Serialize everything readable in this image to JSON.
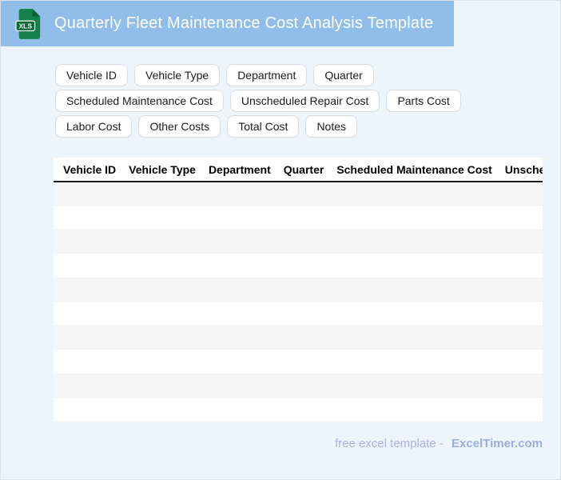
{
  "header": {
    "title": "Quarterly Fleet Maintenance Cost Analysis Template",
    "file_icon_label": "XLS",
    "bar_color": "#90bee9",
    "icon_green": "#14804a",
    "icon_fold_green": "#0a5f33",
    "icon_band_green": "#0c6b36"
  },
  "chips": [
    "Vehicle ID",
    "Vehicle Type",
    "Department",
    "Quarter",
    "Scheduled Maintenance Cost",
    "Unscheduled Repair Cost",
    "Parts Cost",
    "Labor Cost",
    "Other Costs",
    "Total Cost",
    "Notes"
  ],
  "table": {
    "columns": [
      "Vehicle ID",
      "Vehicle Type",
      "Department",
      "Quarter",
      "Scheduled Maintenance Cost",
      "Unscheduled Repair Cost"
    ],
    "visible_empty_rows": 10,
    "stripe_color": "#f5f5f6"
  },
  "footer": {
    "text": "free excel template -",
    "brand": "ExcelTimer.com"
  }
}
